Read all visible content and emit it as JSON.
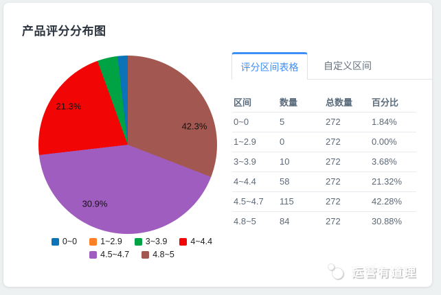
{
  "page": {
    "title": "产品评分分布图"
  },
  "tabs": {
    "active": "评分区间表格",
    "inactive": "自定义区间",
    "active_color": "#3e8ef7"
  },
  "table": {
    "headers": [
      "区间",
      "数量",
      "总数量",
      "百分比"
    ],
    "rows": [
      [
        "0~0",
        "5",
        "272",
        "1.84%"
      ],
      [
        "1~2.9",
        "0",
        "272",
        "0.00%"
      ],
      [
        "3~3.9",
        "10",
        "272",
        "3.68%"
      ],
      [
        "4~4.4",
        "58",
        "272",
        "21.32%"
      ],
      [
        "4.5~4.7",
        "115",
        "272",
        "42.28%"
      ],
      [
        "4.8~5",
        "84",
        "272",
        "30.88%"
      ]
    ]
  },
  "chart_data": {
    "type": "pie",
    "title": "产品评分分布图",
    "categories": [
      "0~0",
      "1~2.9",
      "3~3.9",
      "4~4.4",
      "4.5~4.7",
      "4.8~5"
    ],
    "values": [
      5,
      0,
      10,
      58,
      115,
      84
    ],
    "total": 272,
    "percentages": [
      1.84,
      0.0,
      3.68,
      21.32,
      42.28,
      30.88
    ],
    "colors": [
      "#0d73b9",
      "#ff7f27",
      "#00a344",
      "#f20505",
      "#a05dc0",
      "#a25850"
    ],
    "legend_position": "bottom",
    "start_angle_deg": 90,
    "winding": "counterclockwise-from-top (clockwise order: 4.5~4.7, 4.8~5, 4~4.4, 3~3.9, 1~2.9, 0~0)",
    "visible_labels": [
      {
        "category": "4~4.4",
        "text": "21.3%"
      },
      {
        "category": "4.5~4.7",
        "text": "42.3%"
      },
      {
        "category": "4.8~5",
        "text": "30.9%"
      }
    ]
  },
  "watermark": {
    "text": "运营有道理"
  }
}
